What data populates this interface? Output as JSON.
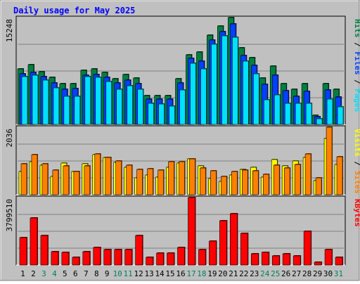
{
  "colors": {
    "background": "#c0c0c0",
    "plot_background": "#c0c0c0",
    "title": "#0000ff",
    "hits": "#008040",
    "files": "#0040ff",
    "pages": "#00e0ff",
    "visits": "#ffff00",
    "sites": "#ff8000",
    "kbytes": "#ff0000",
    "weekend_label": "#00805c",
    "weekday_label": "#000000"
  },
  "chart_data": [
    {
      "type": "bar",
      "title": "Daily usage for May 2025",
      "max_label": "15248",
      "legend": [
        "Pages",
        "Files",
        "Hits"
      ],
      "ylim": [
        0,
        15248
      ],
      "categories": [
        "1",
        "2",
        "3",
        "4",
        "5",
        "6",
        "7",
        "8",
        "9",
        "10",
        "11",
        "12",
        "13",
        "14",
        "15",
        "16",
        "17",
        "18",
        "19",
        "20",
        "21",
        "22",
        "23",
        "24",
        "25",
        "26",
        "27",
        "28",
        "29",
        "30",
        "31"
      ],
      "series": [
        {
          "name": "Hits",
          "values": [
            7900,
            8500,
            7500,
            6700,
            5800,
            5800,
            7700,
            7900,
            7400,
            6500,
            7100,
            6600,
            4100,
            4100,
            4100,
            6500,
            9900,
            10300,
            12700,
            14000,
            15248,
            10900,
            9500,
            6600,
            8300,
            5800,
            5000,
            5800,
            1300,
            5800,
            5000
          ]
        },
        {
          "name": "Files",
          "values": [
            7200,
            7400,
            6800,
            5900,
            5000,
            5100,
            7000,
            7100,
            6700,
            5900,
            6300,
            5800,
            3600,
            3600,
            3600,
            5900,
            9400,
            9000,
            12000,
            13200,
            14300,
            9800,
            8400,
            5700,
            7000,
            4800,
            4000,
            4700,
            1100,
            4900,
            3900
          ]
        },
        {
          "name": "Pages",
          "values": [
            6800,
            7000,
            6300,
            5200,
            4000,
            4000,
            6800,
            6700,
            6100,
            5000,
            5500,
            5000,
            3000,
            2900,
            2600,
            4900,
            8700,
            7900,
            11400,
            12600,
            12400,
            9000,
            7200,
            3500,
            4200,
            3000,
            3000,
            3000,
            800,
            3600,
            2500
          ]
        }
      ]
    },
    {
      "type": "bar",
      "max_label": "2036",
      "legend": [
        "Sites",
        "Visits"
      ],
      "ylim": [
        0,
        2036
      ],
      "categories": [
        "1",
        "2",
        "3",
        "4",
        "5",
        "6",
        "7",
        "8",
        "9",
        "10",
        "11",
        "12",
        "13",
        "14",
        "15",
        "16",
        "17",
        "18",
        "19",
        "20",
        "21",
        "22",
        "23",
        "24",
        "25",
        "26",
        "27",
        "28",
        "29",
        "30",
        "31"
      ],
      "series": [
        {
          "name": "Visits",
          "values": [
            700,
            1000,
            900,
            560,
            960,
            700,
            930,
            1200,
            1120,
            980,
            830,
            500,
            600,
            530,
            830,
            950,
            1080,
            870,
            480,
            400,
            590,
            770,
            830,
            530,
            1050,
            860,
            1020,
            1120,
            430,
            1700,
            920
          ]
        },
        {
          "name": "Sites",
          "values": [
            940,
            1210,
            930,
            740,
            880,
            710,
            880,
            1220,
            1120,
            1010,
            890,
            760,
            790,
            750,
            990,
            990,
            1080,
            800,
            730,
            560,
            710,
            740,
            730,
            620,
            900,
            800,
            920,
            1220,
            500,
            2036,
            1140
          ]
        }
      ]
    },
    {
      "type": "bar",
      "max_label": "3799510",
      "legend": [
        "KBytes"
      ],
      "ylim": [
        0,
        3799510
      ],
      "categories": [
        "1",
        "2",
        "3",
        "4",
        "5",
        "6",
        "7",
        "8",
        "9",
        "10",
        "11",
        "12",
        "13",
        "14",
        "15",
        "16",
        "17",
        "18",
        "19",
        "20",
        "21",
        "22",
        "23",
        "24",
        "25",
        "26",
        "27",
        "28",
        "29",
        "30",
        "31"
      ],
      "series": [
        {
          "name": "KBytes",
          "values": [
            1550000,
            2660000,
            1660000,
            770000,
            730000,
            440000,
            770000,
            1000000,
            880000,
            880000,
            880000,
            1660000,
            440000,
            660000,
            660000,
            1000000,
            3799510,
            880000,
            1330000,
            2500000,
            2900000,
            1770000,
            620000,
            730000,
            530000,
            620000,
            530000,
            1880000,
            170000,
            880000,
            440000
          ]
        }
      ]
    }
  ],
  "x_axis": {
    "labels": [
      "1",
      "2",
      "3",
      "4",
      "5",
      "6",
      "7",
      "8",
      "9",
      "10",
      "11",
      "12",
      "13",
      "14",
      "15",
      "16",
      "17",
      "18",
      "19",
      "20",
      "21",
      "22",
      "23",
      "24",
      "25",
      "26",
      "27",
      "28",
      "29",
      "30",
      "31"
    ],
    "weekend_days": [
      "3",
      "4",
      "10",
      "11",
      "17",
      "18",
      "24",
      "25",
      "31"
    ]
  }
}
